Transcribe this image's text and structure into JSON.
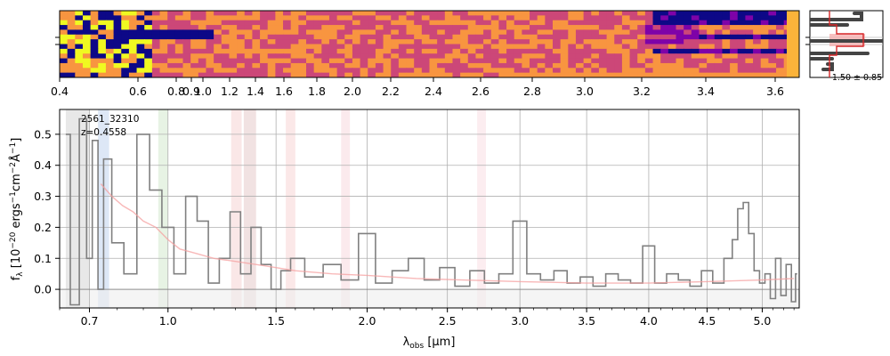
{
  "chart_data": [
    {
      "type": "heatmap",
      "panel": "2D spectrum",
      "x_ticks": [
        "0.4",
        "0.6",
        "0.8",
        "0.9",
        "1.0",
        "1.2",
        "1.4",
        "1.6",
        "1.8",
        "2.0",
        "2.2",
        "2.4",
        "2.6",
        "2.8",
        "3.0",
        "3.2",
        "3.4",
        "3.6"
      ],
      "colormap": [
        "#0d0887",
        "#7e03a8",
        "#cc4778",
        "#f89540",
        "#f0f921"
      ]
    },
    {
      "type": "line",
      "panel": "1D spectrum",
      "label_id": "2561_32310",
      "label_z": "z=0.4558",
      "xlabel": "λ_obs [μm]",
      "ylabel": "f_λ [10^-20 ergs^-1cm^-2Å^-1]",
      "ylim": [
        -0.06,
        0.58
      ],
      "xlim": [
        0.6,
        5.35
      ],
      "x_ticks": [
        "0.7",
        "1.0",
        "1.5",
        "2.0",
        "2.5",
        "3.0",
        "3.5",
        "4.0",
        "4.5",
        "5.0"
      ],
      "y_ticks": [
        "0.0",
        "0.1",
        "0.2",
        "0.3",
        "0.4",
        "0.5"
      ],
      "grid": true,
      "series": [
        {
          "color": "#808080",
          "x": [
            0.62,
            0.65,
            0.68,
            0.7,
            0.72,
            0.74,
            0.76,
            0.8,
            0.85,
            0.9,
            0.95,
            1.0,
            1.05,
            1.1,
            1.15,
            1.2,
            1.25,
            1.3,
            1.35,
            1.4,
            1.45,
            1.5,
            1.55,
            1.6,
            1.7,
            1.8,
            1.9,
            2.0,
            2.1,
            2.2,
            2.3,
            2.4,
            2.5,
            2.6,
            2.7,
            2.8,
            2.9,
            3.0,
            3.1,
            3.2,
            3.3,
            3.4,
            3.5,
            3.6,
            3.7,
            3.8,
            3.9,
            4.0,
            4.1,
            4.2,
            4.3,
            4.4,
            4.5,
            4.6,
            4.7,
            4.75,
            4.8,
            4.85,
            4.9,
            4.95,
            5.0,
            5.05,
            5.1,
            5.15,
            5.2,
            5.25,
            5.3,
            5.33
          ],
          "y": [
            0.5,
            -0.05,
            0.55,
            0.1,
            0.48,
            0.0,
            0.42,
            0.15,
            0.05,
            0.5,
            0.32,
            0.2,
            0.05,
            0.3,
            0.22,
            0.02,
            0.1,
            0.25,
            0.05,
            0.2,
            0.08,
            0.0,
            0.06,
            0.1,
            0.04,
            0.08,
            0.03,
            0.18,
            0.02,
            0.06,
            0.1,
            0.03,
            0.07,
            0.01,
            0.06,
            0.02,
            0.05,
            0.22,
            0.05,
            0.03,
            0.06,
            0.02,
            0.04,
            0.01,
            0.05,
            0.03,
            0.02,
            0.14,
            0.02,
            0.05,
            0.03,
            0.01,
            0.06,
            0.02,
            0.1,
            0.16,
            0.26,
            0.28,
            0.18,
            0.06,
            0.02,
            0.05,
            -0.03,
            0.1,
            -0.02,
            0.08,
            -0.04,
            0.05
          ]
        },
        {
          "color": "#f5a0a0",
          "x": [
            0.74,
            0.78,
            0.82,
            0.86,
            0.9,
            0.95,
            1.0,
            1.05,
            1.1,
            1.2,
            1.3,
            1.4,
            1.5,
            1.6,
            1.8,
            2.0,
            2.3,
            2.6,
            3.0,
            3.5,
            4.0,
            4.5,
            5.0,
            5.3
          ],
          "y": [
            0.34,
            0.3,
            0.27,
            0.25,
            0.22,
            0.2,
            0.16,
            0.13,
            0.12,
            0.1,
            0.09,
            0.08,
            0.07,
            0.06,
            0.05,
            0.045,
            0.035,
            0.03,
            0.025,
            0.02,
            0.02,
            0.025,
            0.03,
            0.035
          ]
        }
      ]
    },
    {
      "type": "bar",
      "panel": "redshift pdf",
      "annotation": "1.50 ± 0.85"
    }
  ]
}
